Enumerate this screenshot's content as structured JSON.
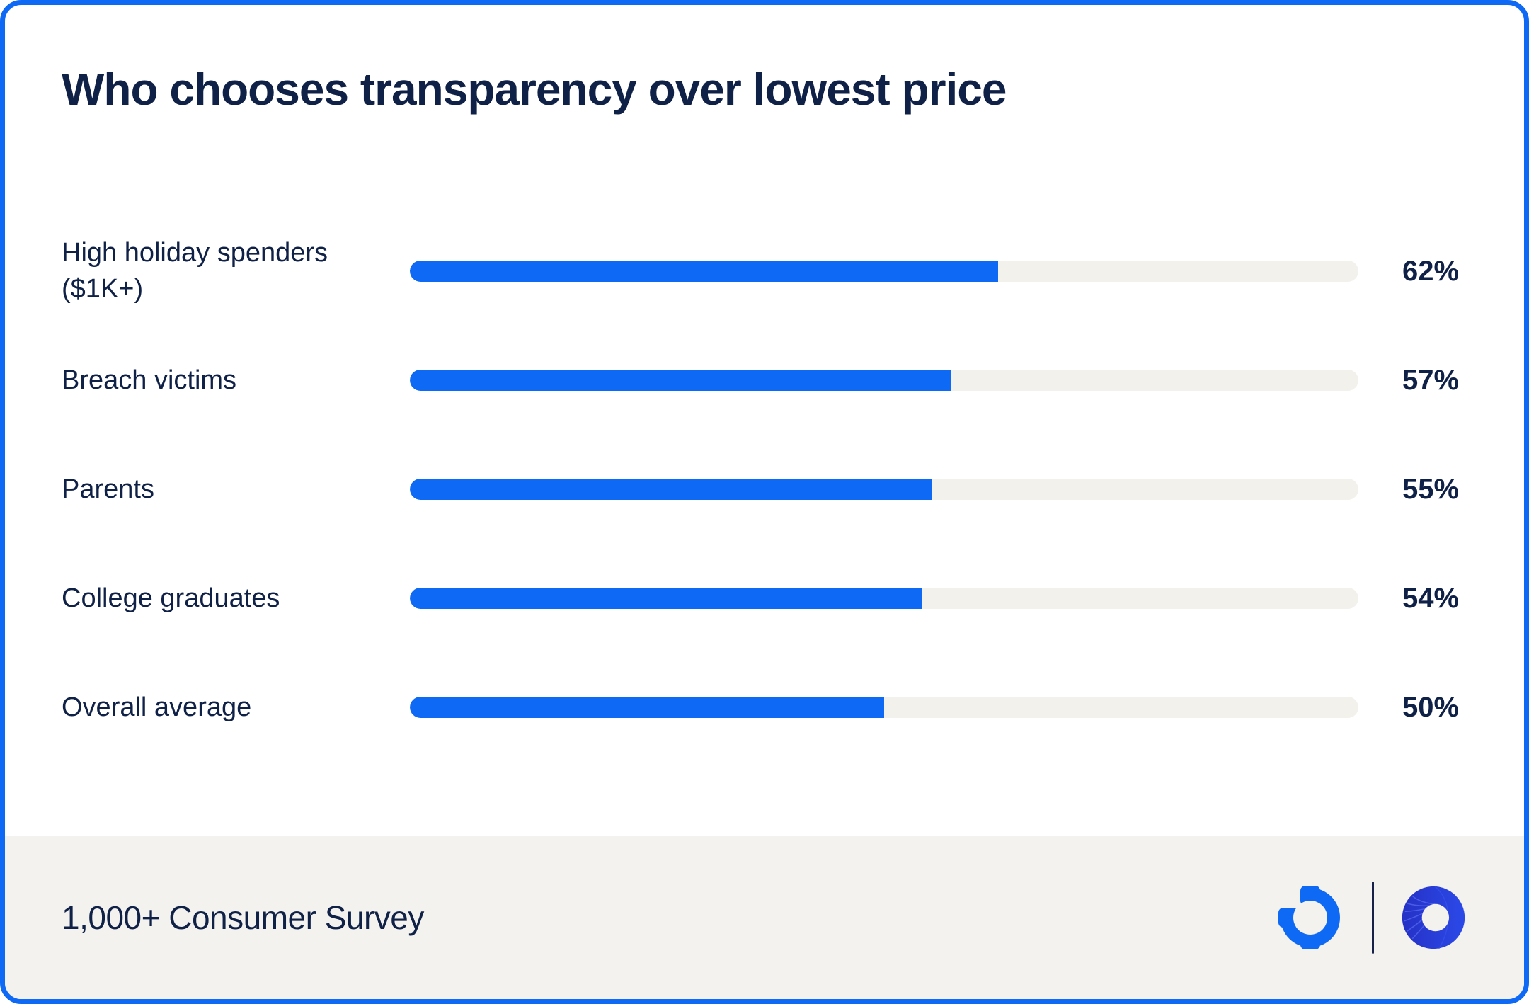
{
  "theme": {
    "accent_blue": "#0e6af4",
    "navy": "#102147",
    "track": "#f3f1ec",
    "footer_bg": "#f4f2ee",
    "card_bg": "#ffffff",
    "logo_deep_blue": "#2531c6",
    "logo_bright_blue": "#2b49e8"
  },
  "chart_data": {
    "type": "bar",
    "orientation": "horizontal",
    "title": "Who chooses transparency over lowest price",
    "categories": [
      "High holiday spenders ($1K+)",
      "Breach victims",
      "Parents",
      "College graduates",
      "Overall average"
    ],
    "values": [
      62,
      57,
      55,
      54,
      50
    ],
    "unit": "%",
    "value_labels": [
      "62%",
      "57%",
      "55%",
      "54%",
      "50%"
    ],
    "xlim": [
      0,
      100
    ],
    "grid": false,
    "legend": false,
    "bar_color": "#0e6af4",
    "track_color": "#f3f1ec"
  },
  "footer": {
    "source_label": "1,000+ Consumer Survey",
    "logos": [
      {
        "name": "gear-mark",
        "color": "#0e6af4"
      },
      {
        "name": "donut-swirl-mark",
        "color": "#2531c6"
      }
    ]
  }
}
